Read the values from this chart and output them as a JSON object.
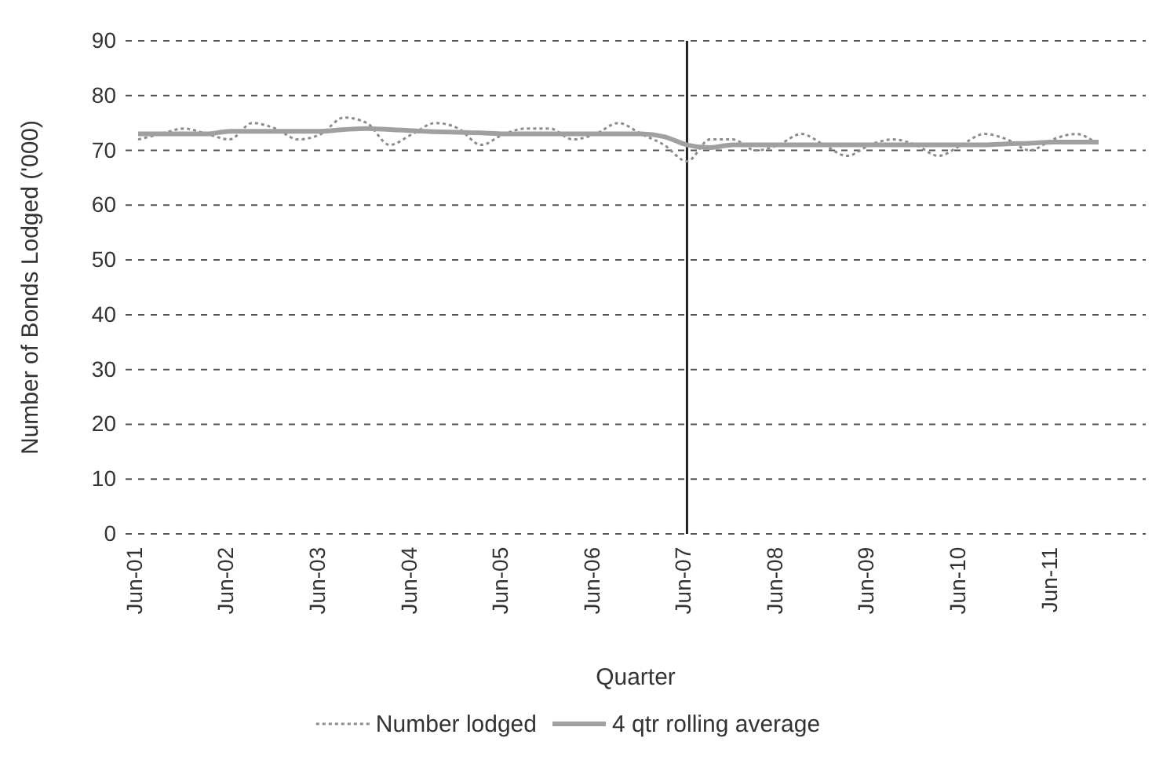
{
  "chart_data": {
    "type": "line",
    "xlabel": "Quarter",
    "ylabel": "Number of Bonds Lodged ('000)",
    "categories": [
      "Jun-01",
      null,
      null,
      null,
      "Jun-02",
      null,
      null,
      null,
      "Jun-03",
      null,
      null,
      null,
      "Jun-04",
      null,
      null,
      null,
      "Jun-05",
      null,
      null,
      null,
      "Jun-06",
      null,
      null,
      null,
      "Jun-07",
      null,
      null,
      null,
      "Jun-08",
      null,
      null,
      null,
      "Jun-09",
      null,
      null,
      null,
      "Jun-10",
      null,
      null,
      null,
      "Jun-11",
      null,
      null
    ],
    "series": [
      {
        "name": "Number lodged",
        "color": "#8c8c8c",
        "line_style": "dotted",
        "values": [
          72,
          73,
          74,
          73,
          72,
          75,
          74,
          72,
          73,
          76,
          75,
          71,
          73,
          75,
          74,
          71,
          73,
          74,
          74,
          72,
          73,
          75,
          73,
          71,
          68,
          72,
          72,
          70,
          71,
          73,
          71,
          69,
          71,
          72,
          71,
          69,
          71,
          73,
          72,
          70,
          72,
          73,
          71
        ]
      },
      {
        "name": "4 qtr rolling average",
        "color": "#a0a0a0",
        "line_style": "solid",
        "values": [
          73,
          73,
          73,
          73,
          73.5,
          73.5,
          73.5,
          73.5,
          73.5,
          73.8,
          74,
          73.8,
          73.6,
          73.4,
          73.3,
          73.2,
          73,
          73,
          73,
          73,
          73,
          73,
          73,
          72.5,
          71,
          70.5,
          71,
          71,
          71,
          71,
          71,
          71,
          71,
          71,
          71,
          71,
          71,
          71,
          71.2,
          71.3,
          71.5,
          71.5,
          71.5
        ]
      }
    ],
    "ylim": [
      0,
      90
    ],
    "yticks": [
      0,
      10,
      20,
      30,
      40,
      50,
      60,
      70,
      80,
      90
    ],
    "grid": "y",
    "legend": "bottom",
    "marker": "none",
    "ref_lines": [
      {
        "axis": "x",
        "value": "Jun-07",
        "color": "#222222",
        "line_style": "solid"
      }
    ]
  }
}
